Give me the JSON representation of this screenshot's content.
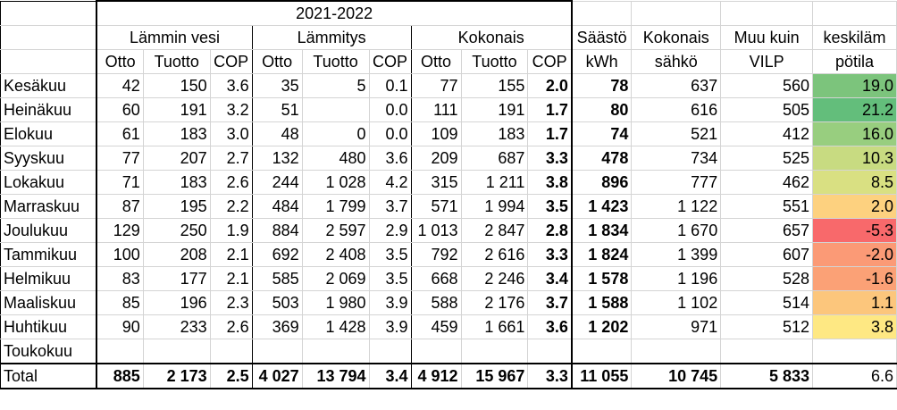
{
  "period_label": "2021-2022",
  "groups": {
    "hot_water": "Lämmin vesi",
    "heating": "Lämmitys",
    "total": "Kokonais"
  },
  "subheaders": {
    "otto": "Otto",
    "tuotto": "Tuotto",
    "cop": "COP"
  },
  "extra_headers": {
    "saasto_line1": "Säästö",
    "saasto_line2": "kWh",
    "kokonais_line1": "Kokonais",
    "kokonais_line2": "sähkö",
    "muu_line1": "Muu kuin",
    "muu_line2": "VILP",
    "temp_line1": "keskiläm",
    "temp_line2": "pötila"
  },
  "rows": [
    {
      "month": "Kesäkuu",
      "hw_otto": "42",
      "hw_tuotto": "150",
      "hw_cop": "3.6",
      "h_otto": "35",
      "h_tuotto": "5",
      "h_cop": "0.1",
      "t_otto": "77",
      "t_tuotto": "155",
      "t_cop": "2.0",
      "saasto": "78",
      "kokonais": "637",
      "muu": "560",
      "temp": "19.0",
      "temp_color": "#7cc47c"
    },
    {
      "month": "Heinäkuu",
      "hw_otto": "60",
      "hw_tuotto": "191",
      "hw_cop": "3.2",
      "h_otto": "51",
      "h_tuotto": "",
      "h_cop": "0.0",
      "t_otto": "111",
      "t_tuotto": "191",
      "t_cop": "1.7",
      "saasto": "80",
      "kokonais": "616",
      "muu": "505",
      "temp": "21.2",
      "temp_color": "#63be7b"
    },
    {
      "month": "Elokuu",
      "hw_otto": "61",
      "hw_tuotto": "183",
      "hw_cop": "3.0",
      "h_otto": "48",
      "h_tuotto": "0",
      "h_cop": "0.0",
      "t_otto": "109",
      "t_tuotto": "183",
      "t_cop": "1.7",
      "saasto": "74",
      "kokonais": "521",
      "muu": "412",
      "temp": "16.0",
      "temp_color": "#98ce7f"
    },
    {
      "month": "Syyskuu",
      "hw_otto": "77",
      "hw_tuotto": "207",
      "hw_cop": "2.7",
      "h_otto": "132",
      "h_tuotto": "480",
      "h_cop": "3.6",
      "t_otto": "209",
      "t_tuotto": "687",
      "t_cop": "3.3",
      "saasto": "478",
      "kokonais": "734",
      "muu": "525",
      "temp": "10.3",
      "temp_color": "#c8db81"
    },
    {
      "month": "Lokakuu",
      "hw_otto": "71",
      "hw_tuotto": "183",
      "hw_cop": "2.6",
      "h_otto": "244",
      "h_tuotto": "1 028",
      "h_cop": "4.2",
      "t_otto": "315",
      "t_tuotto": "1 211",
      "t_cop": "3.8",
      "saasto": "896",
      "kokonais": "777",
      "muu": "462",
      "temp": "8.5",
      "temp_color": "#d9e082"
    },
    {
      "month": "Marraskuu",
      "hw_otto": "87",
      "hw_tuotto": "195",
      "hw_cop": "2.2",
      "h_otto": "484",
      "h_tuotto": "1 799",
      "h_cop": "3.7",
      "t_otto": "571",
      "t_tuotto": "1 994",
      "t_cop": "3.5",
      "saasto": "1 423",
      "kokonais": "1 122",
      "muu": "551",
      "temp": "2.0",
      "temp_color": "#fdd17f"
    },
    {
      "month": "Joulukuu",
      "hw_otto": "129",
      "hw_tuotto": "250",
      "hw_cop": "1.9",
      "h_otto": "884",
      "h_tuotto": "2 597",
      "h_cop": "2.9",
      "t_otto": "1 013",
      "t_tuotto": "2 847",
      "t_cop": "2.8",
      "saasto": "1 834",
      "kokonais": "1 670",
      "muu": "657",
      "temp": "-5.3",
      "temp_color": "#f8696b"
    },
    {
      "month": "Tammikuu",
      "hw_otto": "100",
      "hw_tuotto": "208",
      "hw_cop": "2.1",
      "h_otto": "692",
      "h_tuotto": "2 408",
      "h_cop": "3.5",
      "t_otto": "792",
      "t_tuotto": "2 616",
      "t_cop": "3.3",
      "saasto": "1 824",
      "kokonais": "1 399",
      "muu": "607",
      "temp": "-2.0",
      "temp_color": "#fb9a76"
    },
    {
      "month": "Helmikuu",
      "hw_otto": "83",
      "hw_tuotto": "177",
      "hw_cop": "2.1",
      "h_otto": "585",
      "h_tuotto": "2 069",
      "h_cop": "3.5",
      "t_otto": "668",
      "t_tuotto": "2 246",
      "t_cop": "3.4",
      "saasto": "1 578",
      "kokonais": "1 196",
      "muu": "528",
      "temp": "-1.6",
      "temp_color": "#fba176"
    },
    {
      "month": "Maaliskuu",
      "hw_otto": "85",
      "hw_tuotto": "196",
      "hw_cop": "2.3",
      "h_otto": "503",
      "h_tuotto": "1 980",
      "h_cop": "3.9",
      "t_otto": "588",
      "t_tuotto": "2 176",
      "t_cop": "3.7",
      "saasto": "1 588",
      "kokonais": "1 102",
      "muu": "514",
      "temp": "1.1",
      "temp_color": "#fcc67c"
    },
    {
      "month": "Huhtikuu",
      "hw_otto": "90",
      "hw_tuotto": "233",
      "hw_cop": "2.6",
      "h_otto": "369",
      "h_tuotto": "1 428",
      "h_cop": "3.9",
      "t_otto": "459",
      "t_tuotto": "1 661",
      "t_cop": "3.6",
      "saasto": "1 202",
      "kokonais": "971",
      "muu": "512",
      "temp": "3.8",
      "temp_color": "#fee883"
    },
    {
      "month": "Toukokuu",
      "hw_otto": "",
      "hw_tuotto": "",
      "hw_cop": "",
      "h_otto": "",
      "h_tuotto": "",
      "h_cop": "",
      "t_otto": "",
      "t_tuotto": "",
      "t_cop": "",
      "saasto": "",
      "kokonais": "",
      "muu": "",
      "temp": "",
      "temp_color": "#ffffff"
    }
  ],
  "total": {
    "month": "Total",
    "hw_otto": "885",
    "hw_tuotto": "2 173",
    "hw_cop": "2.5",
    "h_otto": "4 027",
    "h_tuotto": "13 794",
    "h_cop": "3.4",
    "t_otto": "4 912",
    "t_tuotto": "15 967",
    "t_cop": "3.3",
    "saasto": "11 055",
    "kokonais": "10 745",
    "muu": "5 833",
    "temp": "6.6"
  }
}
